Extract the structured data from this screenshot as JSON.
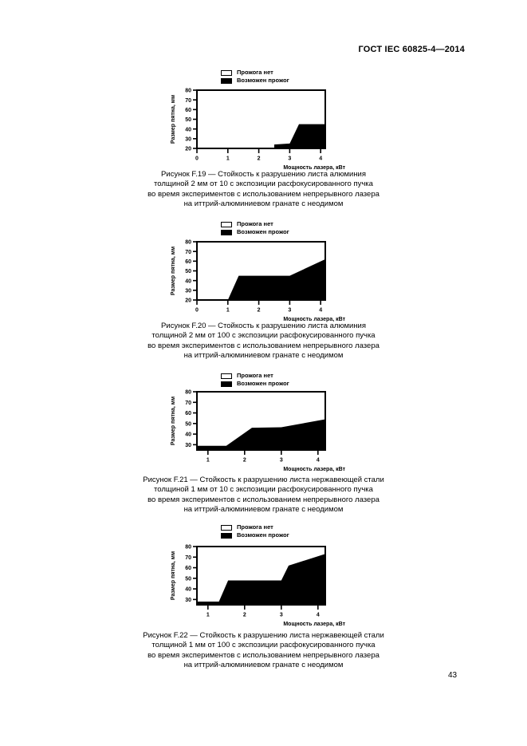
{
  "page": {
    "header": "ГОСТ IEC 60825-4—2014",
    "page_number": "43"
  },
  "chart_data": [
    {
      "figure": "F.19",
      "type": "area",
      "xlabel": "Мощность лазера, кВт",
      "ylabel": "Размер пятна, мм",
      "xlim": [
        0,
        4.15
      ],
      "ylim": [
        20,
        80
      ],
      "x_ticks": [
        0,
        1,
        2,
        3,
        4
      ],
      "y_ticks": [
        20,
        30,
        40,
        50,
        60,
        70,
        80
      ],
      "legend": [
        "Прожога нет",
        "Возможен прожог"
      ],
      "legend_colors": [
        "#ffffff",
        "#000000"
      ],
      "burn_region_boundary": [
        [
          2.5,
          20
        ],
        [
          2.5,
          24
        ],
        [
          3.0,
          25
        ],
        [
          3.3,
          45
        ],
        [
          4.15,
          45
        ],
        [
          4.15,
          20
        ]
      ],
      "caption_lines": [
        "Рисунок F.19 — Стойкость к разрушению листа алюминия",
        "толщиной 2 мм от 10 с экспозиции расфокусированного пучка",
        "во время экспериментов с использованием непрерывного лазера",
        "на иттрий-алюминиевом гранате с неодимом"
      ]
    },
    {
      "figure": "F.20",
      "type": "area",
      "xlabel": "Мощность лазера, кВт",
      "ylabel": "Размер пятна, мм",
      "xlim": [
        0,
        4.15
      ],
      "ylim": [
        20,
        80
      ],
      "x_ticks": [
        0,
        1,
        2,
        3,
        4
      ],
      "y_ticks": [
        20,
        30,
        40,
        50,
        60,
        70,
        80
      ],
      "legend": [
        "Прожога нет",
        "Возможен прожог"
      ],
      "legend_colors": [
        "#ffffff",
        "#000000"
      ],
      "burn_region_boundary": [
        [
          1.0,
          20
        ],
        [
          1.35,
          45
        ],
        [
          3.0,
          45
        ],
        [
          4.15,
          62
        ],
        [
          4.15,
          20
        ]
      ],
      "caption_lines": [
        "Рисунок F.20 — Стойкость к разрушению листа алюминия",
        "толщиной 2 мм от 100 с экспозиции расфокусированного пучка",
        "во время экспериментов с использованием непрерывного лазера",
        "на иттрий-алюминиевом гранате с неодимом"
      ]
    },
    {
      "figure": "F.21",
      "type": "area",
      "xlabel": "Мощность лазера, кВт",
      "ylabel": "Размер пятна, мм",
      "xlim": [
        0.7,
        4.2
      ],
      "ylim": [
        25,
        80
      ],
      "x_ticks": [
        1,
        2,
        3,
        4
      ],
      "y_ticks": [
        30,
        40,
        50,
        60,
        70,
        80
      ],
      "legend": [
        "Прожога нет",
        "Возможен прожог"
      ],
      "legend_colors": [
        "#ffffff",
        "#000000"
      ],
      "burn_region_boundary": [
        [
          0.7,
          25
        ],
        [
          0.7,
          29
        ],
        [
          1.5,
          29
        ],
        [
          2.2,
          46
        ],
        [
          3.0,
          46.5
        ],
        [
          4.2,
          54
        ],
        [
          4.2,
          25
        ]
      ],
      "caption_lines": [
        "Рисунок F.21 — Стойкость к разрушению листа нержавеющей стали",
        "толщиной 1 мм от 10 с экспозиции расфокусированного пучка",
        "во время экспериментов с использованием непрерывного лазера",
        "на иттрий-алюминиевом гранате с неодимом"
      ]
    },
    {
      "figure": "F.22",
      "type": "area",
      "xlabel": "Мощность лазера, кВт",
      "ylabel": "Размер пятна, мм",
      "xlim": [
        0.7,
        4.2
      ],
      "ylim": [
        25,
        80
      ],
      "x_ticks": [
        1,
        2,
        3,
        4
      ],
      "y_ticks": [
        30,
        40,
        50,
        60,
        70,
        80
      ],
      "legend": [
        "Прожога нет",
        "Возможен прожог"
      ],
      "legend_colors": [
        "#ffffff",
        "#000000"
      ],
      "burn_region_boundary": [
        [
          0.7,
          25
        ],
        [
          0.7,
          28
        ],
        [
          1.3,
          28
        ],
        [
          1.55,
          48
        ],
        [
          3.0,
          48
        ],
        [
          3.2,
          62
        ],
        [
          4.2,
          73
        ],
        [
          4.2,
          25
        ]
      ],
      "caption_lines": [
        "Рисунок F.22 — Стойкость к разрушению листа нержавеющей стали",
        "толщиной 1 мм от 100 с экспозиции расфокусированного пучка",
        "во время экспериментов с использованием непрерывного лазера",
        "на иттрий-алюминиевом гранате с неодимом"
      ]
    }
  ]
}
